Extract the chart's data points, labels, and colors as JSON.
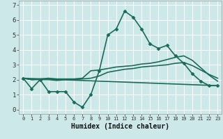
{
  "xlabel": "Humidex (Indice chaleur)",
  "background_color": "#cce8e8",
  "line_color": "#1a6b5a",
  "grid_color": "#ffffff",
  "xlim": [
    -0.5,
    23.5
  ],
  "ylim": [
    -0.3,
    7.3
  ],
  "x_ticks": [
    0,
    1,
    2,
    3,
    4,
    5,
    6,
    7,
    8,
    9,
    10,
    11,
    12,
    13,
    14,
    15,
    16,
    17,
    18,
    19,
    20,
    21,
    22,
    23
  ],
  "y_ticks": [
    0,
    1,
    2,
    3,
    4,
    5,
    6,
    7
  ],
  "line_main": {
    "x": [
      0,
      1,
      2,
      3,
      4,
      5,
      6,
      7,
      8,
      9,
      10,
      11,
      12,
      13,
      14,
      15,
      16,
      17,
      18,
      19,
      20,
      21,
      22,
      23
    ],
    "y": [
      2.1,
      1.4,
      2.0,
      1.2,
      1.2,
      1.2,
      0.5,
      0.15,
      1.0,
      2.6,
      5.0,
      5.4,
      6.6,
      6.2,
      5.4,
      4.4,
      4.1,
      4.3,
      3.6,
      3.1,
      2.4,
      1.9,
      1.6,
      1.6
    ]
  },
  "line_trend1": {
    "x": [
      0,
      1,
      2,
      3,
      4,
      5,
      6,
      7,
      8,
      9,
      10,
      11,
      12,
      13,
      14,
      15,
      16,
      17,
      18,
      19,
      20,
      21,
      22,
      23
    ],
    "y": [
      2.1,
      2.0,
      2.05,
      2.1,
      2.05,
      2.05,
      2.05,
      2.1,
      2.6,
      2.65,
      2.75,
      2.85,
      2.9,
      2.95,
      3.05,
      3.1,
      3.2,
      3.35,
      3.5,
      3.6,
      3.3,
      2.8,
      2.3,
      1.9
    ]
  },
  "line_trend2": {
    "x": [
      0,
      1,
      2,
      3,
      4,
      5,
      6,
      7,
      8,
      9,
      10,
      11,
      12,
      13,
      14,
      15,
      16,
      17,
      18,
      19,
      20,
      21,
      22,
      23
    ],
    "y": [
      2.1,
      2.0,
      2.0,
      2.0,
      1.95,
      2.0,
      2.0,
      2.05,
      2.1,
      2.25,
      2.5,
      2.6,
      2.7,
      2.75,
      2.85,
      2.9,
      2.95,
      3.0,
      3.1,
      3.15,
      2.95,
      2.65,
      2.35,
      2.1
    ]
  },
  "line_linear": {
    "x": [
      0,
      23
    ],
    "y": [
      2.1,
      1.6
    ]
  },
  "marker_style": "D",
  "marker_size": 2.5,
  "linewidth": 1.2,
  "xlabel_fontsize": 7,
  "tick_fontsize_x": 5.0,
  "tick_fontsize_y": 6.5
}
